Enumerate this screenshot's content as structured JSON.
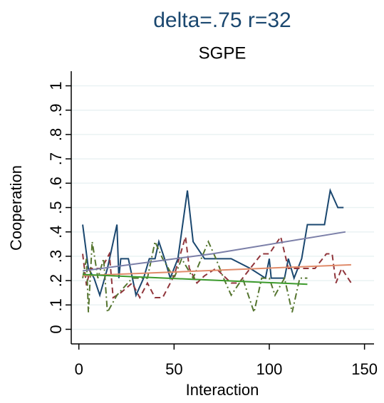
{
  "chart_data": {
    "type": "line",
    "title": "delta=.75 r=32",
    "subtitle": "SGPE",
    "x_label": "Interaction",
    "y_label": "Cooperation",
    "xlim": [
      -4,
      155
    ],
    "ylim": [
      -0.06,
      1.06
    ],
    "xticks": [
      0,
      50,
      100,
      150
    ],
    "yticks": [
      0,
      {
        "value": 0.1,
        "label": ".1"
      },
      {
        "value": 0.2,
        "label": ".2"
      },
      {
        "value": 0.3,
        "label": ".3"
      },
      {
        "value": 0.4,
        "label": ".4"
      },
      {
        "value": 0.5,
        "label": ".5"
      },
      {
        "value": 0.6,
        "label": ".6"
      },
      {
        "value": 0.7,
        "label": ".7"
      },
      {
        "value": 0.8,
        "label": ".8"
      },
      {
        "value": 0.9,
        "label": ".9"
      },
      1
    ],
    "grid": true,
    "series": [
      {
        "color": "#1a476f",
        "dash": "solid",
        "x": [
          2,
          5,
          8,
          11,
          15,
          20,
          21,
          22,
          26,
          30,
          34,
          37,
          40,
          42,
          45,
          48,
          52,
          57,
          60,
          66,
          70,
          80,
          90,
          98,
          100,
          101,
          108,
          110,
          113,
          117,
          120,
          126,
          129,
          132,
          136,
          139
        ],
        "values": [
          0.43,
          0.25,
          0.21,
          0.14,
          0.25,
          0.43,
          0.21,
          0.29,
          0.29,
          0.14,
          0.21,
          0.29,
          0.29,
          0.36,
          0.29,
          0.21,
          0.29,
          0.57,
          0.36,
          0.29,
          0.29,
          0.29,
          0.25,
          0.21,
          0.29,
          0.21,
          0.21,
          0.29,
          0.21,
          0.29,
          0.43,
          0.43,
          0.43,
          0.57,
          0.5,
          0.5
        ]
      },
      {
        "color": "#90353b",
        "dash": "dash",
        "x": [
          2,
          4,
          6,
          8,
          12,
          16,
          18,
          22,
          28,
          32,
          36,
          40,
          44,
          50,
          56,
          58,
          62,
          66,
          72,
          80,
          84,
          90,
          96,
          100,
          106,
          110,
          116,
          124,
          130,
          133,
          135,
          138,
          143
        ],
        "values": [
          0.31,
          0.18,
          0.25,
          0.25,
          0.25,
          0.31,
          0.13,
          0.15,
          0.19,
          0.13,
          0.19,
          0.13,
          0.13,
          0.22,
          0.38,
          0.25,
          0.19,
          0.22,
          0.25,
          0.19,
          0.19,
          0.25,
          0.31,
          0.31,
          0.38,
          0.25,
          0.25,
          0.25,
          0.31,
          0.31,
          0.19,
          0.25,
          0.19
        ]
      },
      {
        "color": "#55752f",
        "dash": "dashdot",
        "x": [
          2,
          4,
          5,
          7,
          10,
          13,
          15,
          20,
          28,
          36,
          40,
          44,
          50,
          54,
          60,
          68,
          72,
          76,
          80,
          86,
          92,
          96,
          100,
          103,
          108,
          112,
          116,
          120
        ],
        "values": [
          0.21,
          0.29,
          0.07,
          0.36,
          0.21,
          0.29,
          0.07,
          0.14,
          0.21,
          0.21,
          0.36,
          0.29,
          0.21,
          0.29,
          0.21,
          0.36,
          0.29,
          0.21,
          0.14,
          0.21,
          0.07,
          0.21,
          0.21,
          0.14,
          0.21,
          0.07,
          0.21,
          0.21
        ]
      },
      {
        "color": "#7b7fa8",
        "dash": "solid",
        "x": [
          2,
          70,
          140
        ],
        "values": [
          0.24,
          0.31,
          0.4
        ]
      },
      {
        "color": "#e08b6a",
        "dash": "solid",
        "x": [
          2,
          143
        ],
        "values": [
          0.22,
          0.265
        ]
      },
      {
        "color": "#3c9a2c",
        "dash": "solid",
        "x": [
          2,
          120
        ],
        "values": [
          0.225,
          0.185
        ]
      }
    ]
  }
}
